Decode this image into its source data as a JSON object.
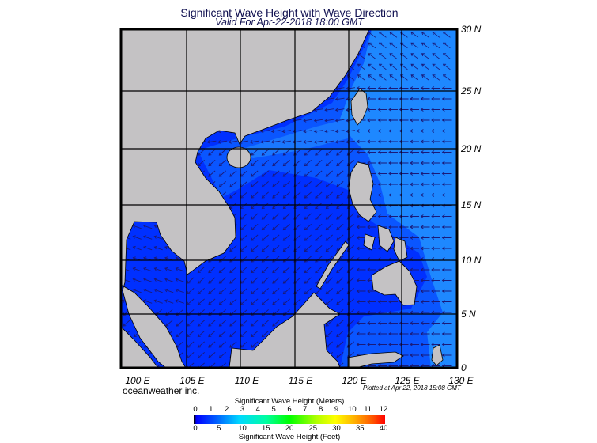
{
  "title": "Significant Wave Height with Wave Direction",
  "subtitle": "Valid For Apr-22-2018 18:00 GMT",
  "map": {
    "region": "South China Sea",
    "lon_labels": [
      "100 E",
      "105 E",
      "110 E",
      "115 E",
      "120 E",
      "125 E",
      "130 E"
    ],
    "lat_labels": [
      "30 N",
      "25 N",
      "20 N",
      "15 N",
      "10 N",
      "5 N",
      "0"
    ],
    "colors": {
      "land": "#c4c2c4",
      "sea_deep": "#0030ff",
      "sea_mid": "#0a56ff",
      "sea_light": "#1e88ff",
      "arrow": "#1a1a7a",
      "grid": "#000000"
    }
  },
  "footer": {
    "company": "oceanweather inc.",
    "plotted": "Plotted at Apr 22, 2018 15:08 GMT"
  },
  "legend": {
    "meters_title": "Significant Wave Height (Meters)",
    "meters_ticks": [
      "0",
      "1",
      "2",
      "3",
      "4",
      "5",
      "6",
      "7",
      "8",
      "9",
      "10",
      "11",
      "12"
    ],
    "feet_title": "Significant Wave Height (Feet)",
    "feet_ticks": [
      "0",
      "5",
      "10",
      "15",
      "20",
      "25",
      "30",
      "35",
      "40"
    ]
  }
}
